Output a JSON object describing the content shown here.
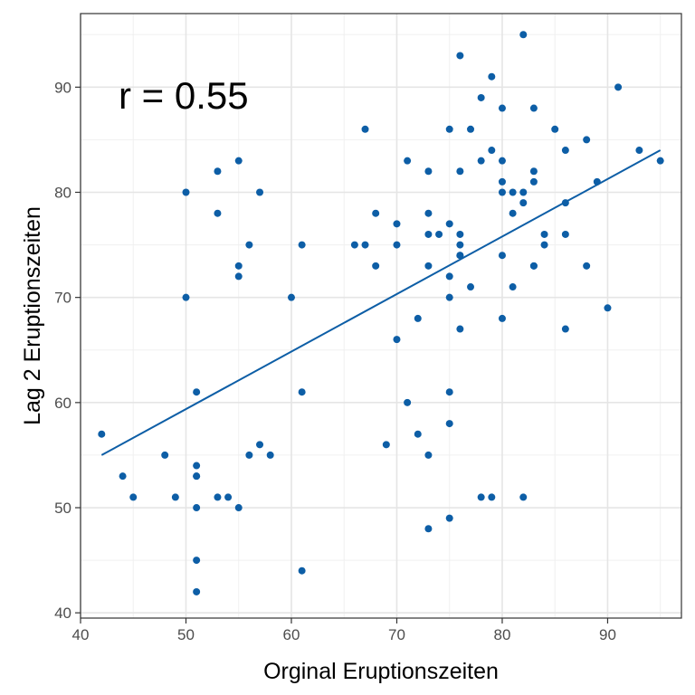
{
  "chart_data": {
    "type": "scatter",
    "xlabel": "Orginal Eruptionszeiten",
    "ylabel": "Lag 2 Eruptionszeiten",
    "annotation": "r = 0.55",
    "xlim": [
      40,
      97
    ],
    "ylim": [
      39.5,
      97
    ],
    "x_ticks": [
      40,
      50,
      60,
      70,
      80,
      90
    ],
    "y_ticks": [
      40,
      50,
      60,
      70,
      80,
      90
    ],
    "x_tick_labels": [
      "40",
      "50",
      "60",
      "70",
      "80",
      "90"
    ],
    "y_tick_labels": [
      "40",
      "50",
      "60",
      "70",
      "80",
      "90"
    ],
    "grid": true,
    "point_color": "#0d5ea6",
    "line_color": "#0d5ea6",
    "regression_line": {
      "x": [
        42,
        95
      ],
      "y": [
        55,
        84
      ]
    },
    "points": [
      [
        42,
        57
      ],
      [
        44,
        53
      ],
      [
        45,
        51
      ],
      [
        48,
        55
      ],
      [
        49,
        51
      ],
      [
        50,
        80
      ],
      [
        50,
        70
      ],
      [
        51,
        61
      ],
      [
        51,
        54
      ],
      [
        51,
        53
      ],
      [
        51,
        53
      ],
      [
        51,
        50
      ],
      [
        51,
        45
      ],
      [
        51,
        42
      ],
      [
        53,
        82
      ],
      [
        53,
        78
      ],
      [
        53,
        51
      ],
      [
        54,
        51
      ],
      [
        55,
        83
      ],
      [
        55,
        73
      ],
      [
        55,
        72
      ],
      [
        55,
        50
      ],
      [
        56,
        75
      ],
      [
        56,
        55
      ],
      [
        57,
        80
      ],
      [
        57,
        56
      ],
      [
        58,
        55
      ],
      [
        60,
        70
      ],
      [
        61,
        75
      ],
      [
        61,
        61
      ],
      [
        61,
        44
      ],
      [
        66,
        75
      ],
      [
        67,
        86
      ],
      [
        67,
        75
      ],
      [
        68,
        78
      ],
      [
        68,
        73
      ],
      [
        69,
        56
      ],
      [
        70,
        77
      ],
      [
        70,
        75
      ],
      [
        70,
        66
      ],
      [
        71,
        83
      ],
      [
        71,
        60
      ],
      [
        72,
        68
      ],
      [
        72,
        57
      ],
      [
        73,
        82
      ],
      [
        73,
        78
      ],
      [
        73,
        76
      ],
      [
        73,
        73
      ],
      [
        73,
        55
      ],
      [
        73,
        48
      ],
      [
        74,
        76
      ],
      [
        75,
        86
      ],
      [
        75,
        77
      ],
      [
        75,
        72
      ],
      [
        75,
        70
      ],
      [
        75,
        61
      ],
      [
        75,
        58
      ],
      [
        75,
        49
      ],
      [
        76,
        93
      ],
      [
        76,
        82
      ],
      [
        76,
        76
      ],
      [
        76,
        75
      ],
      [
        76,
        74
      ],
      [
        76,
        74
      ],
      [
        76,
        67
      ],
      [
        77,
        86
      ],
      [
        77,
        71
      ],
      [
        78,
        89
      ],
      [
        78,
        83
      ],
      [
        78,
        51
      ],
      [
        79,
        91
      ],
      [
        79,
        84
      ],
      [
        79,
        51
      ],
      [
        80,
        88
      ],
      [
        80,
        83
      ],
      [
        80,
        81
      ],
      [
        80,
        80
      ],
      [
        80,
        74
      ],
      [
        80,
        68
      ],
      [
        81,
        80
      ],
      [
        81,
        78
      ],
      [
        81,
        71
      ],
      [
        82,
        95
      ],
      [
        82,
        80
      ],
      [
        82,
        79
      ],
      [
        82,
        51
      ],
      [
        83,
        88
      ],
      [
        83,
        82
      ],
      [
        83,
        81
      ],
      [
        83,
        73
      ],
      [
        83,
        73
      ],
      [
        84,
        76
      ],
      [
        84,
        75
      ],
      [
        85,
        86
      ],
      [
        86,
        84
      ],
      [
        86,
        79
      ],
      [
        86,
        76
      ],
      [
        86,
        67
      ],
      [
        88,
        85
      ],
      [
        88,
        73
      ],
      [
        89,
        81
      ],
      [
        90,
        69
      ],
      [
        91,
        90
      ],
      [
        93,
        84
      ],
      [
        95,
        83
      ]
    ]
  }
}
